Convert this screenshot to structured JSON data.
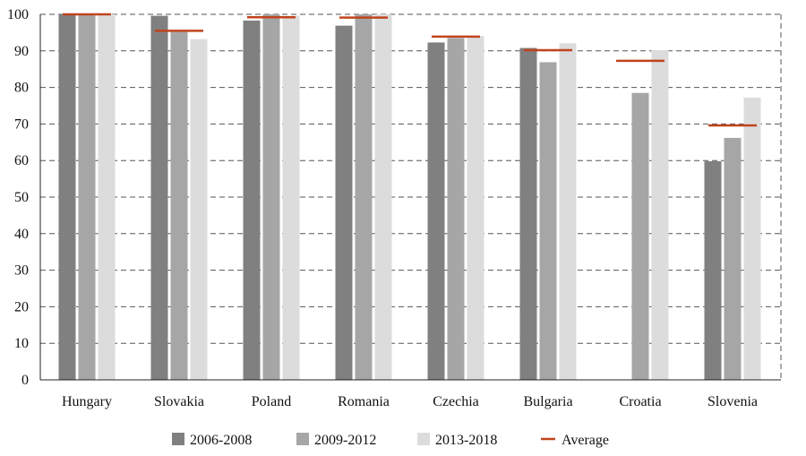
{
  "chart_data": {
    "type": "bar",
    "title": "",
    "xlabel": "",
    "ylabel": "",
    "ylim": [
      0,
      100
    ],
    "yticks": [
      0,
      10,
      20,
      30,
      40,
      50,
      60,
      70,
      80,
      90,
      100
    ],
    "grid": true,
    "legend_position": "bottom",
    "categories": [
      "Hungary",
      "Slovakia",
      "Poland",
      "Romania",
      "Czechia",
      "Bulgaria",
      "Croatia",
      "Slovenia"
    ],
    "series": [
      {
        "name": "2006-2008",
        "color": "#808080",
        "values": [
          100,
          99.6,
          98.3,
          96.9,
          92.3,
          90.8,
          null,
          59.8
        ]
      },
      {
        "name": "2009-2012",
        "color": "#a6a6a7",
        "values": [
          100,
          95.2,
          100,
          100,
          93.5,
          86.9,
          78.5,
          66.2
        ]
      },
      {
        "name": "2013-2018",
        "color": "#dcdcdd",
        "values": [
          100,
          93.2,
          99.6,
          100,
          94.1,
          92.1,
          90.2,
          77.2
        ]
      }
    ],
    "average": {
      "name": "Average",
      "color": "#c0441c",
      "values": [
        100,
        95.5,
        99.2,
        99.1,
        93.9,
        90.2,
        87.3,
        69.6
      ]
    }
  }
}
